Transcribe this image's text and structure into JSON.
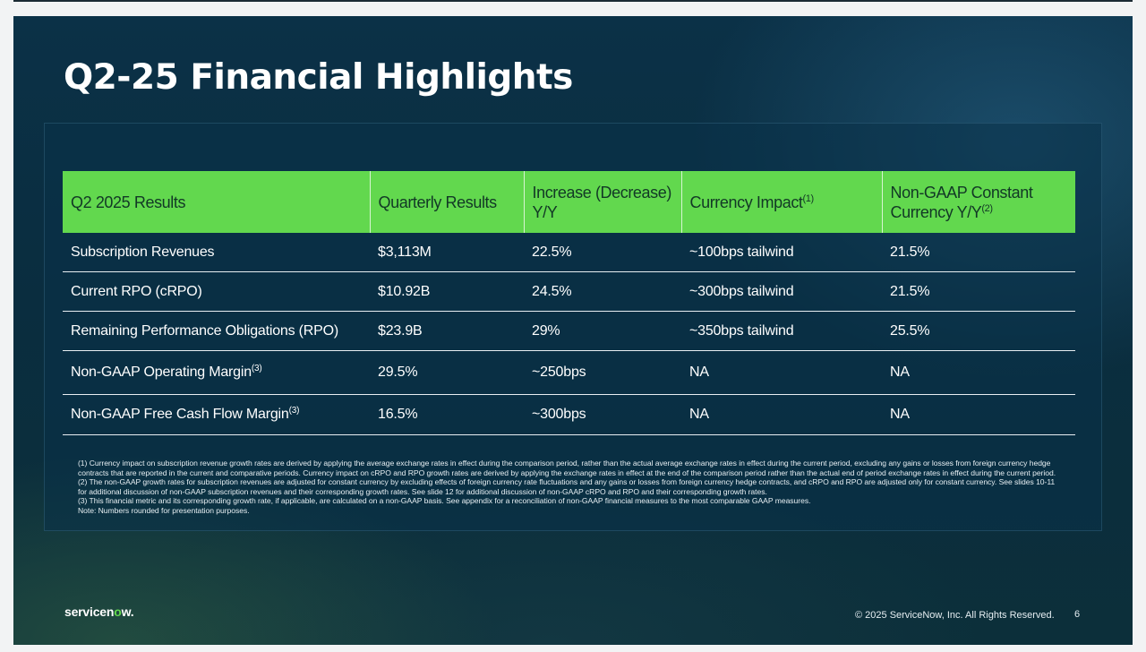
{
  "slide": {
    "title": "Q2-25 Financial Highlights",
    "page_number": "6",
    "copyright": "© 2025 ServiceNow, Inc. All Rights Reserved.",
    "logo": {
      "text_before": "servicen",
      "text_o": "o",
      "text_after": "w."
    }
  },
  "colors": {
    "header_green": "#62d84e",
    "header_text": "#123826",
    "background_navy": "#0b3147"
  },
  "table": {
    "headers": [
      {
        "text": "Q2 2025 Results",
        "sup": ""
      },
      {
        "text": "Quarterly Results",
        "sup": ""
      },
      {
        "text": "Increase (Decrease) Y/Y",
        "sup": ""
      },
      {
        "text": "Currency Impact",
        "sup": "(1)"
      },
      {
        "text": "Non-GAAP Constant Currency Y/Y",
        "sup": "(2)"
      }
    ],
    "rows": [
      {
        "metric": "Subscription Revenues",
        "metric_sup": "",
        "quarterly": "$3,113M",
        "increase": "22.5%",
        "currency": "~100bps tailwind",
        "constant": "21.5%"
      },
      {
        "metric": "Current RPO (cRPO)",
        "metric_sup": "",
        "quarterly": "$10.92B",
        "increase": "24.5%",
        "currency": "~300bps tailwind",
        "constant": "21.5%"
      },
      {
        "metric": "Remaining Performance Obligations (RPO)",
        "metric_sup": "",
        "quarterly": "$23.9B",
        "increase": "29%",
        "currency": "~350bps tailwind",
        "constant": "25.5%"
      },
      {
        "metric": "Non-GAAP Operating Margin",
        "metric_sup": "(3)",
        "quarterly": "29.5%",
        "increase": "~250bps",
        "currency": "NA",
        "constant": "NA"
      },
      {
        "metric": "Non-GAAP Free Cash Flow Margin",
        "metric_sup": "(3)",
        "quarterly": "16.5%",
        "increase": "~300bps",
        "currency": "NA",
        "constant": "NA"
      }
    ]
  },
  "footnotes": {
    "note1": "(1) Currency impact on subscription revenue growth rates are derived by applying the average exchange rates in effect during the comparison period, rather than the actual average exchange rates in effect during the current period, excluding any gains or losses from foreign currency hedge contracts that are reported in the current and comparative periods. Currency impact on cRPO and RPO growth rates are derived by applying the exchange rates in effect at the end of the comparison period rather than the actual end of period exchange rates in effect during the current period.",
    "note2": "(2) The non-GAAP growth rates for subscription revenues are adjusted for constant currency by excluding effects of foreign currency rate fluctuations and any gains or losses from foreign currency hedge contracts, and cRPO and RPO are adjusted only for constant currency. See slides 10-11 for additional discussion of non-GAAP subscription revenues and their corresponding growth rates. See slide 12 for additional discussion of non-GAAP cRPO and RPO and their corresponding growth rates.",
    "note3": "(3) This financial metric and its corresponding growth rate, if applicable, are calculated on a non-GAAP basis. See appendix for a reconciliation of non-GAAP financial measures to the most comparable GAAP measures.",
    "note4": "Note: Numbers rounded for presentation purposes."
  }
}
